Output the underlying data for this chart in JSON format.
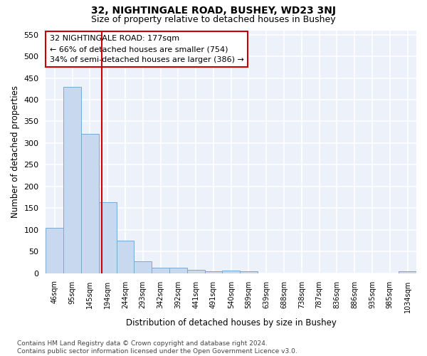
{
  "title": "32, NIGHTINGALE ROAD, BUSHEY, WD23 3NJ",
  "subtitle": "Size of property relative to detached houses in Bushey",
  "xlabel": "Distribution of detached houses by size in Bushey",
  "ylabel": "Number of detached properties",
  "categories": [
    "46sqm",
    "95sqm",
    "145sqm",
    "194sqm",
    "244sqm",
    "293sqm",
    "342sqm",
    "392sqm",
    "441sqm",
    "491sqm",
    "540sqm",
    "589sqm",
    "639sqm",
    "688sqm",
    "738sqm",
    "787sqm",
    "836sqm",
    "886sqm",
    "935sqm",
    "985sqm",
    "1034sqm"
  ],
  "values": [
    104,
    430,
    322,
    163,
    75,
    27,
    13,
    13,
    8,
    5,
    6,
    5,
    0,
    0,
    0,
    0,
    0,
    0,
    0,
    0,
    5
  ],
  "bar_color": "#c8d8ee",
  "bar_edgecolor": "#7aaad0",
  "bar_linewidth": 0.7,
  "vline_color": "#cc0000",
  "vline_pos": 2.653,
  "annotation_line1": "32 NIGHTINGALE ROAD: 177sqm",
  "annotation_line2": "← 66% of detached houses are smaller (754)",
  "annotation_line3": "34% of semi-detached houses are larger (386) →",
  "annotation_box_edgecolor": "#cc0000",
  "annotation_fontsize": 8,
  "ylim": [
    0,
    560
  ],
  "yticks": [
    0,
    50,
    100,
    150,
    200,
    250,
    300,
    350,
    400,
    450,
    500,
    550
  ],
  "background_color": "#edf2fa",
  "grid_color": "#ffffff",
  "footnote": "Contains HM Land Registry data © Crown copyright and database right 2024.\nContains public sector information licensed under the Open Government Licence v3.0.",
  "title_fontsize": 10,
  "subtitle_fontsize": 9,
  "xlabel_fontsize": 8.5,
  "ylabel_fontsize": 8.5,
  "footnote_fontsize": 6.5
}
